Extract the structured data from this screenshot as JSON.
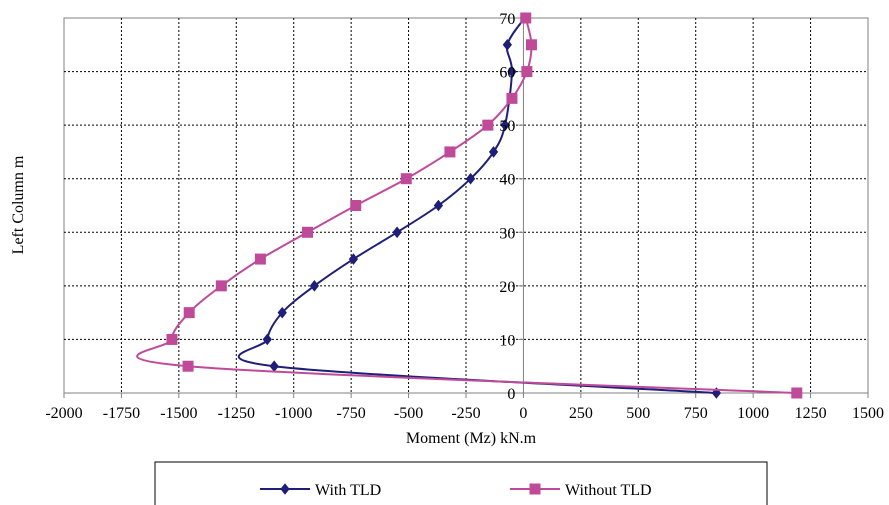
{
  "chart_data": {
    "type": "line",
    "title": "",
    "xlabel": "Moment (Mz) kN.m",
    "ylabel": "Left Column m",
    "xlim": [
      -2000,
      1500
    ],
    "ylim": [
      0,
      70
    ],
    "xticks": [
      -2000,
      -1750,
      -1500,
      -1250,
      -1000,
      -750,
      -500,
      -250,
      0,
      250,
      500,
      750,
      1000,
      1250,
      1500
    ],
    "yticks": [
      0,
      10,
      20,
      30,
      40,
      50,
      60,
      70
    ],
    "grid": true,
    "legend": "bottom",
    "series": [
      {
        "name": "With TLD",
        "color": "#1f1f7a",
        "marker": "diamond",
        "x": [
          840,
          -1085,
          -1115,
          -1050,
          -910,
          -740,
          -550,
          -370,
          -230,
          -130,
          -80,
          -50,
          -70,
          5
        ],
        "y": [
          0,
          5,
          10,
          15,
          20,
          25,
          30,
          35,
          40,
          45,
          50,
          60,
          65,
          70
        ]
      },
      {
        "name": "Without TLD",
        "color": "#c04a9a",
        "marker": "square",
        "x": [
          1190,
          -1460,
          -1530,
          -1455,
          -1315,
          -1145,
          -940,
          -730,
          -510,
          -320,
          -155,
          -50,
          15,
          35,
          10
        ],
        "y": [
          0,
          5,
          10,
          15,
          20,
          25,
          30,
          35,
          40,
          45,
          50,
          55,
          60,
          65,
          70
        ]
      }
    ]
  }
}
